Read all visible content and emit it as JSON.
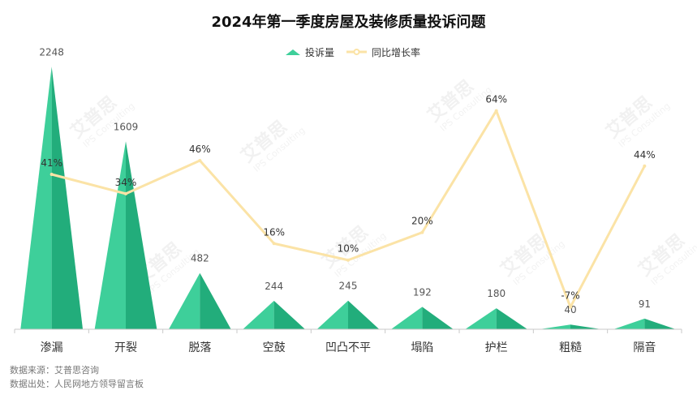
{
  "title": "2024年第一季度房屋及装修质量投诉问题",
  "legend": [
    {
      "label": "投诉量",
      "color": "#3ecf9a"
    },
    {
      "label": "同比增长率",
      "color": "#fbe3a6"
    }
  ],
  "watermark": {
    "brand": "艾普思",
    "sub": "IPS Consulting"
  },
  "source_lines": [
    "数据来源：艾普思咨询",
    "数据出处：人民网地方领导留言板"
  ],
  "chart_data": {
    "type": "bar",
    "categories": [
      "渗漏",
      "开裂",
      "脱落",
      "空鼓",
      "凹凸不平",
      "塌陷",
      "护栏",
      "粗糙",
      "隔音"
    ],
    "series": [
      {
        "name": "投诉量",
        "type": "pictorial-triangle",
        "values": [
          2248,
          1609,
          482,
          244,
          245,
          192,
          180,
          40,
          91
        ],
        "color_light": "#3ecf9a",
        "color_dark": "#22ad7b"
      },
      {
        "name": "同比增长率",
        "type": "line",
        "values": [
          41,
          34,
          46,
          16,
          10,
          20,
          64,
          -7,
          44
        ],
        "labels": [
          "41%",
          "34%",
          "46%",
          "16%",
          "10%",
          "20%",
          "64%",
          "-7%",
          "44%"
        ],
        "color": "#fbe3a6"
      }
    ],
    "ylim": [
      0,
      2250
    ],
    "y2lim": [
      -15,
      80
    ],
    "grid": false,
    "legend_position": "top-center"
  }
}
